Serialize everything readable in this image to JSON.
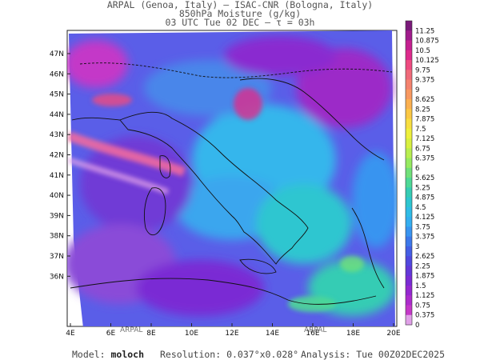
{
  "header": {
    "line1": "ARPAL (Genoa, Italy)  –  ISAC-CNR (Bologna, Italy)",
    "line2": "850hPa Moisture (g/kg)",
    "line3": "03 UTC Tue 02 DEC  –  τ = 03h"
  },
  "map": {
    "lat_labels": [
      "47N",
      "46N",
      "45N",
      "44N",
      "43N",
      "42N",
      "41N",
      "40N",
      "39N",
      "38N",
      "37N",
      "36N"
    ],
    "lon_labels": [
      "4E",
      "6E",
      "8E",
      "10E",
      "12E",
      "14E",
      "16E",
      "18E",
      "20E"
    ],
    "watermark": "ARPAL"
  },
  "colorbar": {
    "labels": [
      "11.25",
      "10.875",
      "10.5",
      "10.125",
      "9.75",
      "9.375",
      "9",
      "8.625",
      "8.25",
      "7.875",
      "7.5",
      "7.125",
      "6.75",
      "6.375",
      "6",
      "5.625",
      "5.25",
      "4.875",
      "4.5",
      "4.125",
      "3.75",
      "3.375",
      "3",
      "2.625",
      "2.25",
      "1.875",
      "1.5",
      "1.125",
      "0.75",
      "0.375",
      "0"
    ],
    "colors": [
      "#7a1a7a",
      "#a01c8c",
      "#c42090",
      "#dd2a8c",
      "#ee4a80",
      "#f06a7a",
      "#f4826e",
      "#f89860",
      "#fbb050",
      "#fbc844",
      "#f8de40",
      "#eef03c",
      "#d8f040",
      "#b8ee50",
      "#96ea60",
      "#70e07a",
      "#4ed896",
      "#36ccb4",
      "#2ec6d0",
      "#30bce6",
      "#34aef0",
      "#3894f0",
      "#3c78ea",
      "#445ee4",
      "#5048de",
      "#6238d8",
      "#7a2cd4",
      "#9428d0",
      "#ac2ccc",
      "#c438c8",
      "#e0a0e8"
    ]
  },
  "footer": {
    "model_label": "Model:",
    "model_value": "moloch",
    "resolution": "Resolution: 0.037°x0.028°",
    "analysis": "Analysis: Tue 00Z02DEC2025"
  }
}
